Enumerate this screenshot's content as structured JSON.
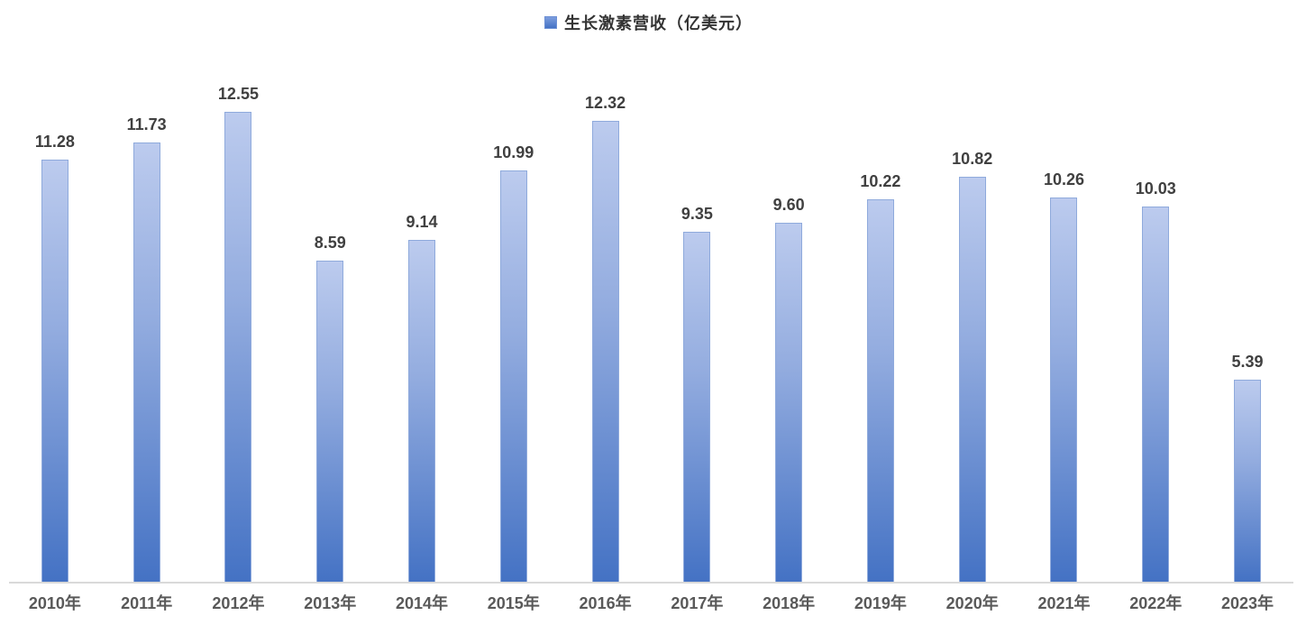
{
  "legend": {
    "marker_icon": "blue-square-legend-marker",
    "label": "生长激素营收（亿美元）",
    "marker_color": "#4472c4"
  },
  "chart_data": {
    "type": "bar",
    "title": "生长激素营收（亿美元）",
    "categories": [
      "2010年",
      "2011年",
      "2012年",
      "2013年",
      "2014年",
      "2015年",
      "2016年",
      "2017年",
      "2018年",
      "2019年",
      "2020年",
      "2021年",
      "2022年",
      "2023年"
    ],
    "values": [
      11.28,
      11.73,
      12.55,
      8.59,
      9.14,
      10.99,
      12.32,
      9.35,
      9.6,
      10.22,
      10.82,
      10.26,
      10.03,
      5.39
    ],
    "value_labels": [
      "11.28",
      "11.73",
      "12.55",
      "8.59",
      "9.14",
      "10.99",
      "12.32",
      "9.35",
      "9.60",
      "10.22",
      "10.82",
      "10.26",
      "10.03",
      "5.39"
    ],
    "series_name": "生长激素营收（亿美元）",
    "xlabel": "",
    "ylabel": "",
    "ylim": [
      0,
      14
    ],
    "grid": false,
    "y_axis_visible": false,
    "legend_position": "top-center",
    "bar_color_top": "#b9c9ec",
    "bar_color_bottom": "#4472c4",
    "bar_border_color": "#8faadc",
    "axis_line_color": "#d9d9d9",
    "value_label_color": "#404040",
    "tick_label_color": "#595959"
  }
}
